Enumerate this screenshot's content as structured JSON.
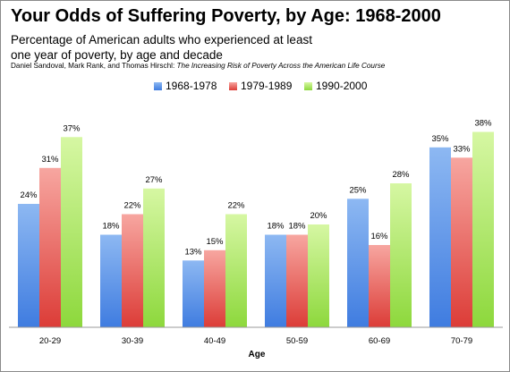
{
  "chart_data": {
    "type": "bar",
    "title": "Your Odds of Suffering Poverty, by Age: 1968-2000",
    "subtitle": [
      "Percentage of American adults who experienced at least",
      "one year of poverty, by age and decade"
    ],
    "source_prefix": "Daniel Sandoval, Mark Rank, and Thomas Hirschl: ",
    "source_italic": "The Increasing Risk of Poverty Across the American Life Course",
    "xlabel": "Age",
    "ylabel": "",
    "categories": [
      "20-29",
      "30-39",
      "40-49",
      "50-59",
      "60-69",
      "70-79"
    ],
    "series": [
      {
        "name": "1968-1978",
        "values": [
          24,
          18,
          13,
          18,
          25,
          35
        ],
        "labels": [
          "24%",
          "18%",
          "13%",
          "18%",
          "25%",
          "35%"
        ],
        "color_top": "#8db8f2",
        "color_bottom": "#3f7ce0"
      },
      {
        "name": "1979-1989",
        "values": [
          31,
          22,
          15,
          18,
          16,
          33
        ],
        "labels": [
          "31%",
          "22%",
          "15%",
          "18%",
          "16%",
          "33%"
        ],
        "color_top": "#f7a6a0",
        "color_bottom": "#dc3c37"
      },
      {
        "name": "1990-2000",
        "values": [
          37,
          27,
          22,
          20,
          28,
          38
        ],
        "labels": [
          "37%",
          "27%",
          "22%",
          "20%",
          "28%",
          "38%"
        ],
        "color_top": "#d6f7a3",
        "color_bottom": "#8dd83c"
      }
    ],
    "ylim": [
      0,
      40
    ],
    "grid": false,
    "legend_position": "top"
  }
}
